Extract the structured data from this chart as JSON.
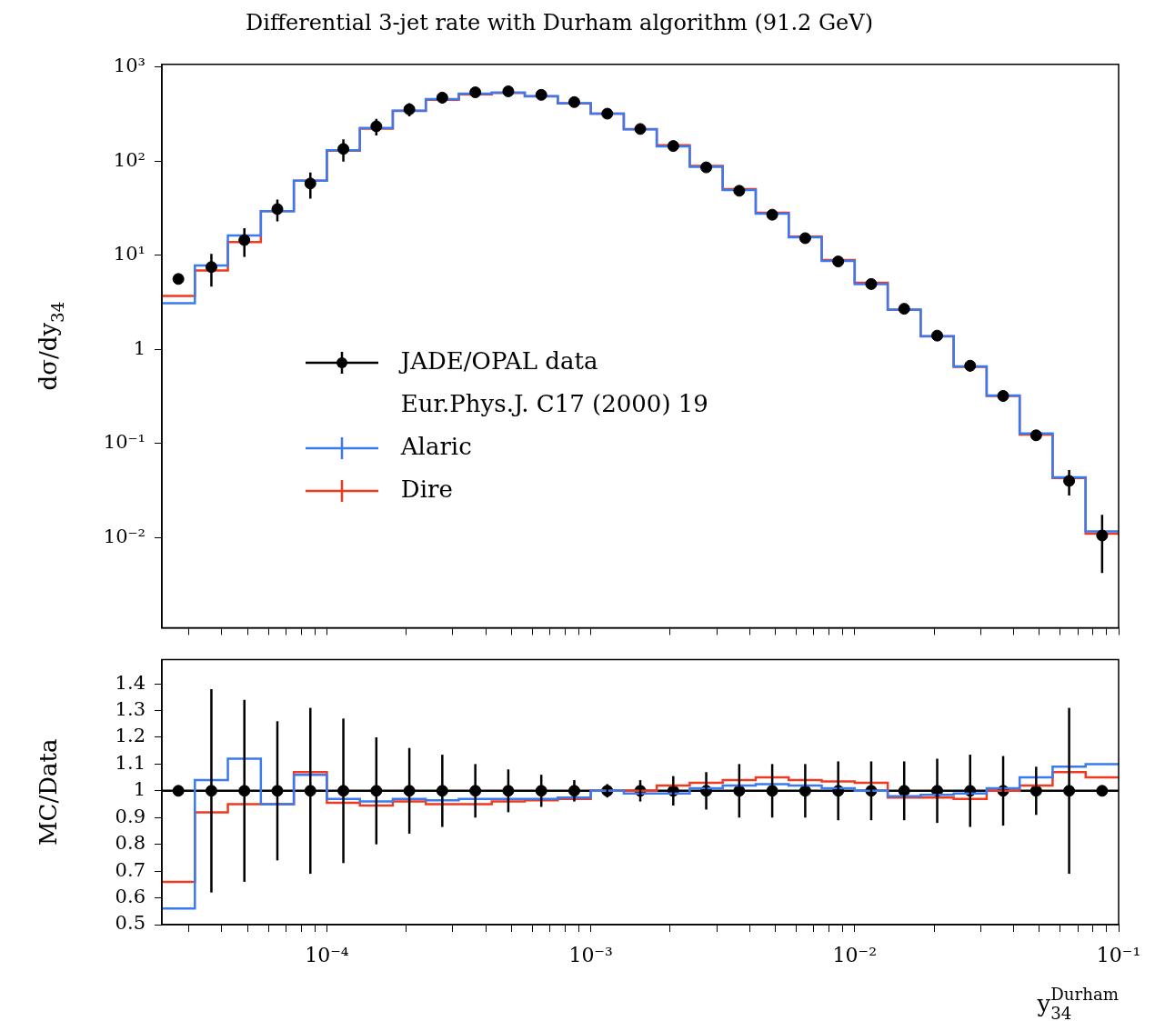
{
  "chart_data": [
    {
      "type": "scatter",
      "title": "Differential 3-jet rate with Durham algorithm (91.2 GeV)",
      "ylabel": "dσ/dy$_{34}$",
      "log": "xy",
      "legend": "left",
      "marker": "circle",
      "tick_labels": "y",
      "annotations": [
        "Eur.Phys.J. C17 (2000) 19"
      ],
      "xlim": [
        2.371e-05,
        0.1
      ],
      "xticks": [
        {
          "value": 3e-05,
          "label": null
        },
        {
          "value": 4e-05,
          "label": null
        },
        {
          "value": 5e-05,
          "label": null
        },
        {
          "value": 6e-05,
          "label": null
        },
        {
          "value": 7e-05,
          "label": null
        },
        {
          "value": 8e-05,
          "label": null
        },
        {
          "value": 9e-05,
          "label": null
        },
        {
          "value": 0.0001,
          "label": null
        },
        {
          "value": 0.0002,
          "label": null
        },
        {
          "value": 0.0003,
          "label": null
        },
        {
          "value": 0.0004,
          "label": null
        },
        {
          "value": 0.0005,
          "label": null
        },
        {
          "value": 0.0006,
          "label": null
        },
        {
          "value": 0.0007,
          "label": null
        },
        {
          "value": 0.0008,
          "label": null
        },
        {
          "value": 0.0009,
          "label": null
        },
        {
          "value": 0.001,
          "label": null
        },
        {
          "value": 0.002,
          "label": null
        },
        {
          "value": 0.003,
          "label": null
        },
        {
          "value": 0.004,
          "label": null
        },
        {
          "value": 0.005,
          "label": null
        },
        {
          "value": 0.006,
          "label": null
        },
        {
          "value": 0.007,
          "label": null
        },
        {
          "value": 0.008,
          "label": null
        },
        {
          "value": 0.009,
          "label": null
        },
        {
          "value": 0.01,
          "label": null
        },
        {
          "value": 0.02,
          "label": null
        },
        {
          "value": 0.03,
          "label": null
        },
        {
          "value": 0.04,
          "label": null
        },
        {
          "value": 0.05,
          "label": null
        },
        {
          "value": 0.06,
          "label": null
        },
        {
          "value": 0.07,
          "label": null
        },
        {
          "value": 0.08,
          "label": null
        },
        {
          "value": 0.09,
          "label": null
        },
        {
          "value": 0.1,
          "label": null
        }
      ],
      "ylim": [
        0.0011,
        1070
      ],
      "yticks": [
        {
          "value": 0.01,
          "label": "10⁻²"
        },
        {
          "value": 0.1,
          "label": "10⁻¹"
        },
        {
          "value": 1,
          "label": "1"
        },
        {
          "value": 10,
          "label": "10¹"
        },
        {
          "value": 100,
          "label": "10²"
        },
        {
          "value": 1000,
          "label": "10³"
        }
      ],
      "bins": [
        2.371e-05,
        3.162e-05,
        4.217e-05,
        5.623e-05,
        7.499e-05,
        0.0001,
        0.0001334,
        0.0001778,
        0.0002371,
        0.0003162,
        0.0004217,
        0.0005623,
        0.0007499,
        0.001,
        0.001334,
        0.001778,
        0.002371,
        0.003162,
        0.004217,
        0.005623,
        0.007499,
        0.01,
        0.01334,
        0.01778,
        0.02371,
        0.03162,
        0.04217,
        0.05623,
        0.07499,
        0.1
      ],
      "series": [
        {
          "name": "JADE/OPAL data",
          "type": "scatter",
          "color": "#000000",
          "x": [
            2.738e-05,
            3.652e-05,
            4.87e-05,
            6.494e-05,
            8.66e-05,
            0.0001155,
            0.000154,
            0.0002054,
            0.0002738,
            0.0003652,
            0.000487,
            0.0006494,
            0.000866,
            0.001155,
            0.00154,
            0.002054,
            0.002738,
            0.003652,
            0.00487,
            0.006494,
            0.00866,
            0.01155,
            0.0154,
            0.02054,
            0.02738,
            0.03652,
            0.0487,
            0.06494,
            0.0866
          ],
          "values": [
            5.6,
            7.5,
            14.5,
            31,
            58,
            135,
            235,
            356,
            474,
            540,
            553,
            507,
            425,
            320,
            220,
            145,
            86,
            48.5,
            27,
            15.2,
            8.6,
            4.95,
            2.7,
            1.4,
            0.67,
            0.32,
            0.122,
            0.04,
            0.0105
          ],
          "errors": [
            null,
            2.85,
            4.9,
            8.1,
            18,
            36,
            47,
            57,
            64,
            54,
            44,
            30,
            17,
            8,
            8.8,
            8,
            6,
            4.9,
            2.7,
            1.5,
            0.95,
            0.54,
            0.3,
            0.17,
            0.09,
            0.042,
            0.011,
            0.012,
            [
              0.0042,
              0.0174
            ]
          ]
        },
        {
          "name": "Alaric",
          "type": "histogram",
          "color": "#3a7af0",
          "values": [
            3.1,
            7.8,
            16.2,
            29.5,
            62,
            131,
            226,
            345,
            457,
            524,
            536,
            492,
            414,
            320,
            218,
            144,
            87,
            49.5,
            27.7,
            15.5,
            8.7,
            4.95,
            2.65,
            1.38,
            0.66,
            0.323,
            0.128,
            0.0436,
            0.0116
          ]
        },
        {
          "name": "Dire",
          "type": "histogram",
          "color": "#f03a20",
          "values": [
            3.7,
            6.9,
            13.8,
            29.5,
            62,
            129,
            222,
            342,
            450,
            513,
            531,
            489,
            412,
            320,
            220,
            148,
            89,
            50.4,
            28.4,
            15.8,
            8.9,
            5.1,
            2.63,
            1.37,
            0.65,
            0.32,
            0.124,
            0.0428,
            0.011
          ]
        }
      ]
    },
    {
      "type": "scatter",
      "ylabel": "MC/Data",
      "xlabel": "y$_{34}$$^{Durham}$",
      "log": "x",
      "marker": "circle",
      "xlim": [
        2.371e-05,
        0.1
      ],
      "xticks": [
        {
          "value": 3e-05,
          "label": null
        },
        {
          "value": 4e-05,
          "label": null
        },
        {
          "value": 5e-05,
          "label": null
        },
        {
          "value": 6e-05,
          "label": null
        },
        {
          "value": 7e-05,
          "label": null
        },
        {
          "value": 8e-05,
          "label": null
        },
        {
          "value": 9e-05,
          "label": null
        },
        {
          "value": 0.0001,
          "label": "10⁻⁴"
        },
        {
          "value": 0.0002,
          "label": null
        },
        {
          "value": 0.0003,
          "label": null
        },
        {
          "value": 0.0004,
          "label": null
        },
        {
          "value": 0.0005,
          "label": null
        },
        {
          "value": 0.0006,
          "label": null
        },
        {
          "value": 0.0007,
          "label": null
        },
        {
          "value": 0.0008,
          "label": null
        },
        {
          "value": 0.0009,
          "label": null
        },
        {
          "value": 0.001,
          "label": "10⁻³"
        },
        {
          "value": 0.002,
          "label": null
        },
        {
          "value": 0.003,
          "label": null
        },
        {
          "value": 0.004,
          "label": null
        },
        {
          "value": 0.005,
          "label": null
        },
        {
          "value": 0.006,
          "label": null
        },
        {
          "value": 0.007,
          "label": null
        },
        {
          "value": 0.008,
          "label": null
        },
        {
          "value": 0.009,
          "label": null
        },
        {
          "value": 0.01,
          "label": "10⁻²"
        },
        {
          "value": 0.02,
          "label": null
        },
        {
          "value": 0.03,
          "label": null
        },
        {
          "value": 0.04,
          "label": null
        },
        {
          "value": 0.05,
          "label": null
        },
        {
          "value": 0.06,
          "label": null
        },
        {
          "value": 0.07,
          "label": null
        },
        {
          "value": 0.08,
          "label": null
        },
        {
          "value": 0.09,
          "label": null
        },
        {
          "value": 0.1,
          "label": "10⁻¹"
        }
      ],
      "ylim": [
        0.5,
        1.49
      ],
      "yticks": [
        0.5,
        0.6,
        0.7,
        0.8,
        0.9,
        1,
        1.1,
        1.2,
        1.3,
        1.4
      ],
      "ref_lines": [
        {
          "axis": "y",
          "value": 1,
          "color": "#000000"
        }
      ],
      "bins": [
        2.371e-05,
        3.162e-05,
        4.217e-05,
        5.623e-05,
        7.499e-05,
        0.0001,
        0.0001334,
        0.0001778,
        0.0002371,
        0.0003162,
        0.0004217,
        0.0005623,
        0.0007499,
        0.001,
        0.001334,
        0.001778,
        0.002371,
        0.003162,
        0.004217,
        0.005623,
        0.007499,
        0.01,
        0.01334,
        0.01778,
        0.02371,
        0.03162,
        0.04217,
        0.05623,
        0.07499,
        0.1
      ],
      "series": [
        {
          "type": "histogram",
          "color": "#3a7af0",
          "values": [
            0.56,
            1.04,
            1.12,
            0.95,
            1.06,
            0.97,
            0.96,
            0.97,
            0.965,
            0.97,
            0.97,
            0.97,
            0.975,
            1.0,
            0.99,
            0.99,
            1.01,
            1.02,
            1.025,
            1.02,
            1.01,
            1.0,
            0.98,
            0.985,
            0.99,
            1.01,
            1.05,
            1.09,
            1.1
          ]
        },
        {
          "type": "histogram",
          "color": "#f03a20",
          "values": [
            0.66,
            0.92,
            0.95,
            0.95,
            1.07,
            0.955,
            0.945,
            0.96,
            0.95,
            0.95,
            0.96,
            0.965,
            0.97,
            1.0,
            1.0,
            1.02,
            1.03,
            1.04,
            1.05,
            1.04,
            1.035,
            1.03,
            0.975,
            0.975,
            0.97,
            1.0,
            1.02,
            1.07,
            1.05
          ]
        },
        {
          "type": "scatter",
          "color": "#000000",
          "x": [
            2.738e-05,
            3.652e-05,
            4.87e-05,
            6.494e-05,
            8.66e-05,
            0.0001155,
            0.000154,
            0.0002054,
            0.0002738,
            0.0003652,
            0.000487,
            0.0006494,
            0.000866,
            0.001155,
            0.00154,
            0.002054,
            0.002738,
            0.003652,
            0.00487,
            0.006494,
            0.00866,
            0.01155,
            0.0154,
            0.02054,
            0.02738,
            0.03652,
            0.0487,
            0.06494,
            0.0866
          ],
          "values": [
            1,
            1,
            1,
            1,
            1,
            1,
            1,
            1,
            1,
            1,
            1,
            1,
            1,
            1,
            1,
            1,
            1,
            1,
            1,
            1,
            1,
            1,
            1,
            1,
            1,
            1,
            1,
            1,
            1
          ],
          "errors": [
            null,
            0.38,
            0.34,
            0.26,
            0.31,
            0.27,
            0.2,
            0.16,
            0.135,
            0.1,
            0.08,
            0.06,
            0.04,
            0.025,
            0.04,
            0.055,
            0.07,
            0.1,
            0.1,
            0.1,
            0.11,
            0.11,
            0.11,
            0.12,
            0.135,
            0.13,
            0.09,
            0.31,
            null
          ]
        }
      ]
    }
  ]
}
